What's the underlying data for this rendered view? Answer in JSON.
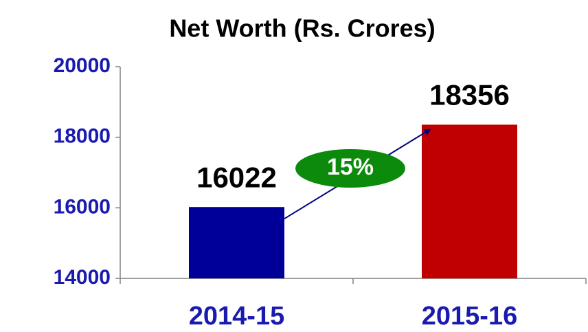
{
  "chart_data": {
    "type": "bar",
    "title": "Net Worth (Rs. Crores)",
    "categories": [
      "2014-15",
      "2015-16"
    ],
    "values": [
      16022,
      18356
    ],
    "colors": [
      "#000099",
      "#c00000"
    ],
    "ylim": [
      14000,
      20000
    ],
    "yticks": [
      14000,
      16000,
      18000,
      20000
    ],
    "annotation": "15%",
    "annotation_color": "#0c8a0c"
  }
}
